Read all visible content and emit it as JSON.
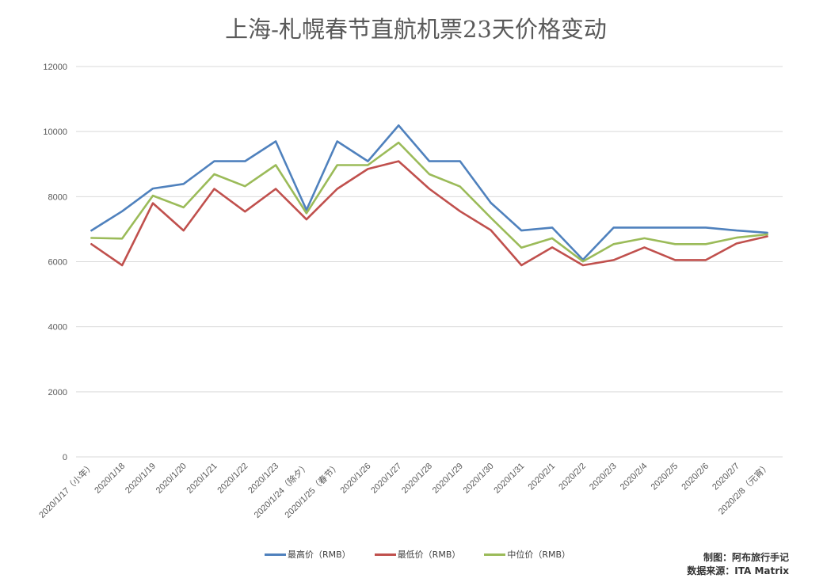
{
  "chart_data": {
    "type": "line",
    "title": "上海-札幌春节直航机票23天价格变动",
    "xlabel": "",
    "ylabel": "",
    "ylim": [
      0,
      12000
    ],
    "yticks": [
      0,
      2000,
      4000,
      6000,
      8000,
      10000,
      12000
    ],
    "grid": true,
    "legend_position": "bottom",
    "categories": [
      "2020/1/17（小年）",
      "2020/1/18",
      "2020/1/19",
      "2020/1/20",
      "2020/1/21",
      "2020/1/22",
      "2020/1/23",
      "2020/1/24（除夕）",
      "2020/1/25（春节）",
      "2020/1/26",
      "2020/1/27",
      "2020/1/28",
      "2020/1/29",
      "2020/1/30",
      "2020/1/31",
      "2020/2/1",
      "2020/2/2",
      "2020/2/3",
      "2020/2/4",
      "2020/2/5",
      "2020/2/6",
      "2020/2/7",
      "2020/2/8（元宵）"
    ],
    "series": [
      {
        "name": "最高价（RMB）",
        "color": "#4F81BD",
        "values": [
          6960,
          7550,
          8250,
          8390,
          9090,
          9090,
          9700,
          7590,
          9700,
          9090,
          10190,
          9090,
          9090,
          7810,
          6960,
          7050,
          6060,
          7050,
          7050,
          7050,
          7050,
          6960,
          6890
        ]
      },
      {
        "name": "最低价（RMB）",
        "color": "#C0504D",
        "values": [
          6540,
          5890,
          7800,
          6960,
          8240,
          7540,
          8240,
          7300,
          8240,
          8850,
          9090,
          8240,
          7550,
          6970,
          5890,
          6440,
          5890,
          6050,
          6440,
          6050,
          6050,
          6560,
          6780
        ]
      },
      {
        "name": "中位价（RMB）",
        "color": "#9BBB59",
        "values": [
          6730,
          6710,
          8030,
          7670,
          8690,
          8320,
          8970,
          7490,
          8970,
          8970,
          9660,
          8690,
          8310,
          7350,
          6430,
          6720,
          6010,
          6540,
          6720,
          6540,
          6540,
          6740,
          6840
        ]
      }
    ]
  },
  "credit": {
    "author": "制图：阿布旅行手记",
    "source": "数据来源：ITA Matrix"
  }
}
